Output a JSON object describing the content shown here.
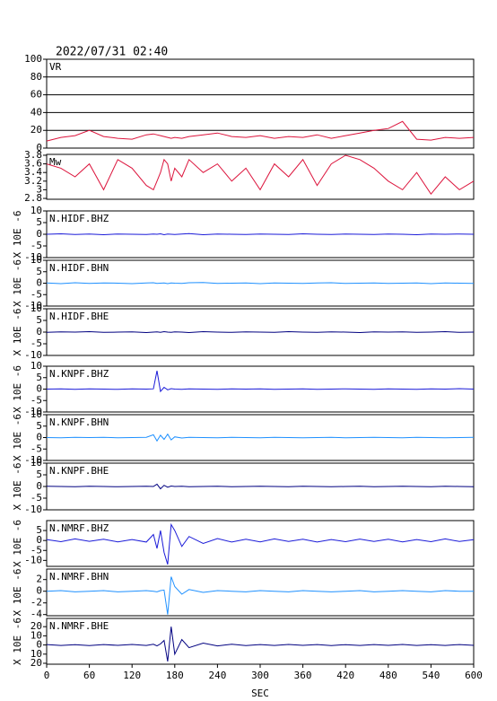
{
  "chart_data": [
    {
      "type": "line",
      "title": "2022/07/31 02:40",
      "label": "VR",
      "color": "#dc143c",
      "grid": true,
      "x": [
        0,
        20,
        40,
        60,
        80,
        100,
        120,
        140,
        150,
        155,
        160,
        165,
        170,
        175,
        180,
        190,
        200,
        220,
        240,
        260,
        280,
        300,
        320,
        340,
        360,
        380,
        400,
        420,
        440,
        460,
        480,
        500,
        520,
        540,
        560,
        580,
        600
      ],
      "values": [
        8,
        12,
        14,
        20,
        13,
        11,
        10,
        15,
        16,
        15,
        14,
        13,
        12,
        11,
        12,
        11,
        13,
        15,
        17,
        13,
        12,
        14,
        11,
        13,
        12,
        15,
        11,
        14,
        17,
        20,
        22,
        30,
        10,
        9,
        12,
        11,
        12
      ],
      "xlim": [
        0,
        600
      ],
      "ylim": [
        0,
        100
      ],
      "yticks": [
        0,
        20,
        40,
        60,
        80,
        100
      ]
    },
    {
      "type": "line",
      "label": "Mw",
      "color": "#dc143c",
      "grid": false,
      "x": [
        0,
        20,
        40,
        60,
        80,
        100,
        120,
        140,
        150,
        155,
        160,
        165,
        170,
        175,
        180,
        190,
        200,
        220,
        240,
        260,
        280,
        300,
        320,
        340,
        360,
        380,
        400,
        420,
        440,
        460,
        480,
        500,
        520,
        540,
        560,
        580,
        600
      ],
      "values": [
        3.6,
        3.5,
        3.3,
        3.6,
        3.0,
        3.7,
        3.5,
        3.1,
        3.0,
        3.2,
        3.4,
        3.7,
        3.6,
        3.2,
        3.5,
        3.3,
        3.7,
        3.4,
        3.6,
        3.2,
        3.5,
        3.0,
        3.6,
        3.3,
        3.7,
        3.1,
        3.6,
        3.8,
        3.7,
        3.5,
        3.2,
        3.0,
        3.4,
        2.9,
        3.3,
        3.0,
        3.2
      ],
      "xlim": [
        0,
        600
      ],
      "ylim": [
        2.78,
        3.82
      ],
      "yticks": [
        2.8,
        3.0,
        3.2,
        3.4,
        3.6,
        3.8
      ]
    },
    {
      "type": "line",
      "label": "N.HIDF.BHZ",
      "ylabel": "X 10E -6",
      "color": "#1a1ad8",
      "grid": false,
      "x": [
        0,
        20,
        40,
        60,
        80,
        100,
        120,
        140,
        150,
        155,
        160,
        165,
        170,
        175,
        180,
        190,
        200,
        220,
        240,
        260,
        280,
        300,
        320,
        340,
        360,
        380,
        400,
        420,
        440,
        460,
        480,
        500,
        520,
        540,
        560,
        580,
        600
      ],
      "values": [
        0,
        0.2,
        -0.1,
        0.1,
        -0.2,
        0.1,
        0,
        -0.1,
        0.1,
        0,
        0.2,
        -0.2,
        0.1,
        0,
        -0.1,
        0.1,
        0.3,
        -0.2,
        0.1,
        0,
        -0.1,
        0.1,
        0,
        -0.1,
        0.2,
        0,
        -0.1,
        0.1,
        0,
        -0.1,
        0.1,
        0,
        -0.2,
        0.1,
        0,
        0.1,
        0
      ],
      "xlim": [
        0,
        600
      ],
      "ylim": [
        -10,
        10
      ],
      "yticks": [
        -10,
        -5,
        0,
        5,
        10
      ]
    },
    {
      "type": "line",
      "label": "N.HIDF.BHN",
      "ylabel": "X 10E -6",
      "color": "#1e90ff",
      "grid": false,
      "x": [
        0,
        20,
        40,
        60,
        80,
        100,
        120,
        140,
        150,
        155,
        160,
        165,
        170,
        175,
        180,
        190,
        200,
        220,
        240,
        260,
        280,
        300,
        320,
        340,
        360,
        380,
        400,
        420,
        440,
        460,
        480,
        500,
        520,
        540,
        560,
        580,
        600
      ],
      "values": [
        0.1,
        -0.2,
        0.2,
        -0.1,
        0.1,
        0,
        -0.2,
        0.1,
        0.2,
        -0.1,
        0,
        0.1,
        -0.2,
        0.1,
        0,
        -0.1,
        0.2,
        0.3,
        -0.1,
        0,
        0.1,
        -0.2,
        0.1,
        0,
        -0.1,
        0.1,
        0.2,
        -0.1,
        0,
        0.1,
        -0.1,
        0,
        0.1,
        -0.2,
        0.1,
        0,
        -0.1
      ],
      "xlim": [
        0,
        600
      ],
      "ylim": [
        -10,
        10
      ],
      "yticks": [
        -10,
        -5,
        0,
        5,
        10
      ]
    },
    {
      "type": "line",
      "label": "N.HIDF.BHE",
      "ylabel": "X 10E -6",
      "color": "#000080",
      "grid": false,
      "x": [
        0,
        20,
        40,
        60,
        80,
        100,
        120,
        140,
        150,
        155,
        160,
        165,
        170,
        175,
        180,
        190,
        200,
        220,
        240,
        260,
        280,
        300,
        320,
        340,
        360,
        380,
        400,
        420,
        440,
        460,
        480,
        500,
        520,
        540,
        560,
        580,
        600
      ],
      "values": [
        -0.1,
        0.1,
        0,
        0.2,
        -0.1,
        0,
        0.1,
        -0.2,
        0,
        0.1,
        -0.1,
        0.2,
        0,
        -0.1,
        0.1,
        0,
        -0.2,
        0.2,
        0,
        -0.1,
        0.1,
        0,
        -0.1,
        0.2,
        0,
        -0.1,
        0.1,
        0,
        -0.2,
        0.1,
        0,
        0.1,
        -0.1,
        0,
        0.2,
        -0.1,
        0
      ],
      "xlim": [
        0,
        600
      ],
      "ylim": [
        -10,
        10
      ],
      "yticks": [
        -10,
        -5,
        0,
        5,
        10
      ]
    },
    {
      "type": "line",
      "label": "N.KNPF.BHZ",
      "ylabel": "X 10E -6",
      "color": "#1a1ad8",
      "grid": false,
      "x": [
        0,
        20,
        40,
        60,
        80,
        100,
        120,
        140,
        150,
        155,
        160,
        165,
        170,
        175,
        180,
        190,
        200,
        220,
        240,
        260,
        280,
        300,
        320,
        340,
        360,
        380,
        400,
        420,
        440,
        460,
        480,
        500,
        520,
        540,
        560,
        580,
        600
      ],
      "values": [
        0,
        0.1,
        -0.1,
        0.1,
        0,
        -0.1,
        0.1,
        0,
        0.1,
        8,
        -1,
        0.8,
        -0.3,
        0.2,
        0,
        -0.1,
        0.1,
        0,
        -0.1,
        0.1,
        0,
        0.1,
        -0.1,
        0,
        0.1,
        -0.1,
        0,
        0.1,
        0,
        -0.1,
        0.1,
        0,
        -0.1,
        0.1,
        0,
        0.2,
        0
      ],
      "xlim": [
        0,
        600
      ],
      "ylim": [
        -10,
        10
      ],
      "yticks": [
        -10,
        -5,
        0,
        5,
        10
      ]
    },
    {
      "type": "line",
      "label": "N.KNPF.BHN",
      "ylabel": "X 10E -6",
      "color": "#1e90ff",
      "grid": false,
      "x": [
        0,
        20,
        40,
        60,
        80,
        100,
        120,
        140,
        150,
        155,
        160,
        165,
        170,
        175,
        180,
        190,
        200,
        220,
        240,
        260,
        280,
        300,
        320,
        340,
        360,
        380,
        400,
        420,
        440,
        460,
        480,
        500,
        520,
        540,
        560,
        580,
        600
      ],
      "values": [
        0,
        -0.1,
        0.1,
        0,
        0.1,
        -0.1,
        0,
        0.1,
        1.2,
        -1.5,
        1,
        -0.8,
        1.5,
        -1,
        0.3,
        -0.2,
        0.1,
        0,
        -0.1,
        0.1,
        0,
        -0.1,
        0.1,
        0,
        -0.1,
        0,
        0.1,
        -0.1,
        0,
        0.1,
        0,
        -0.1,
        0.1,
        0,
        -0.1,
        0,
        0.1
      ],
      "xlim": [
        0,
        600
      ],
      "ylim": [
        -10,
        10
      ],
      "yticks": [
        -10,
        -5,
        0,
        5,
        10
      ]
    },
    {
      "type": "line",
      "label": "N.KNPF.BHE",
      "ylabel": "X 10E -6",
      "color": "#000080",
      "grid": false,
      "x": [
        0,
        20,
        40,
        60,
        80,
        100,
        120,
        140,
        150,
        155,
        160,
        165,
        170,
        175,
        180,
        190,
        200,
        220,
        240,
        260,
        280,
        300,
        320,
        340,
        360,
        380,
        400,
        420,
        440,
        460,
        480,
        500,
        520,
        540,
        560,
        580,
        600
      ],
      "values": [
        0.1,
        0,
        -0.1,
        0.1,
        0,
        -0.1,
        0,
        0.1,
        0,
        1,
        -1,
        0.5,
        -0.3,
        0.2,
        0,
        0.1,
        -0.1,
        0,
        0.1,
        -0.1,
        0,
        0.1,
        0,
        -0.1,
        0.1,
        0,
        -0.1,
        0,
        0.1,
        -0.1,
        0,
        0.1,
        0,
        -0.1,
        0.1,
        0,
        -0.1
      ],
      "xlim": [
        0,
        600
      ],
      "ylim": [
        -10,
        10
      ],
      "yticks": [
        -10,
        -5,
        0,
        5,
        10
      ]
    },
    {
      "type": "line",
      "label": "N.NMRF.BHZ",
      "ylabel": "X 10E -6",
      "color": "#1a1ad8",
      "grid": false,
      "x": [
        0,
        20,
        40,
        60,
        80,
        100,
        120,
        140,
        150,
        155,
        160,
        165,
        170,
        175,
        180,
        190,
        200,
        220,
        240,
        260,
        280,
        300,
        320,
        340,
        360,
        380,
        400,
        420,
        440,
        460,
        480,
        500,
        520,
        540,
        560,
        580,
        600
      ],
      "values": [
        0.5,
        -0.6,
        0.8,
        -0.4,
        0.6,
        -0.7,
        0.5,
        -0.8,
        3,
        -4,
        5,
        -6,
        -12,
        8,
        5,
        -3,
        2,
        -1.5,
        1,
        -0.8,
        0.6,
        -0.7,
        0.8,
        -0.5,
        0.6,
        -0.8,
        0.5,
        -0.6,
        0.7,
        -0.5,
        0.6,
        -0.7,
        0.5,
        -0.6,
        0.8,
        -0.5,
        0.4
      ],
      "xlim": [
        0,
        600
      ],
      "ylim": [
        -13,
        10
      ],
      "yticks": [
        -10,
        -5,
        0,
        5
      ]
    },
    {
      "type": "line",
      "label": "N.NMRF.BHN",
      "ylabel": "X 10E -6",
      "color": "#1e90ff",
      "grid": false,
      "x": [
        0,
        20,
        40,
        60,
        80,
        100,
        120,
        140,
        150,
        155,
        160,
        165,
        170,
        175,
        180,
        190,
        200,
        220,
        240,
        260,
        280,
        300,
        320,
        340,
        360,
        380,
        400,
        420,
        440,
        460,
        480,
        500,
        520,
        540,
        560,
        580,
        600
      ],
      "values": [
        0,
        0.1,
        -0.1,
        0,
        0.1,
        -0.1,
        0,
        0.1,
        0,
        -0.1,
        0.1,
        0.2,
        -4,
        2.5,
        0.8,
        -0.5,
        0.3,
        -0.2,
        0.1,
        0,
        -0.1,
        0.1,
        0,
        -0.1,
        0.1,
        0,
        -0.1,
        0,
        0.1,
        -0.1,
        0,
        0.1,
        0,
        -0.1,
        0.1,
        0,
        0
      ],
      "xlim": [
        0,
        600
      ],
      "ylim": [
        -4.2,
        3.8
      ],
      "yticks": [
        -4,
        -2,
        0,
        2
      ]
    },
    {
      "type": "line",
      "label": "N.NMRF.BHE",
      "ylabel": "X 10E -6",
      "color": "#000080",
      "grid": false,
      "x": [
        0,
        20,
        40,
        60,
        80,
        100,
        120,
        140,
        150,
        155,
        160,
        165,
        170,
        175,
        180,
        190,
        200,
        220,
        240,
        260,
        280,
        300,
        320,
        340,
        360,
        380,
        400,
        420,
        440,
        460,
        480,
        500,
        520,
        540,
        560,
        580,
        600
      ],
      "values": [
        0.5,
        -0.5,
        0.4,
        -0.6,
        0.5,
        -0.4,
        0.6,
        -0.5,
        0.8,
        -1,
        1.2,
        5,
        -18,
        20,
        -10,
        6,
        -3,
        2,
        -1,
        0.8,
        -0.6,
        0.5,
        -0.5,
        0.6,
        -0.4,
        0.5,
        -0.6,
        0.4,
        -0.5,
        0.5,
        -0.4,
        0.6,
        -0.5,
        0.4,
        -0.5,
        0.5,
        -0.4
      ],
      "xlim": [
        0,
        600
      ],
      "ylim": [
        -21,
        29
      ],
      "yticks": [
        {
          "value": -20,
          "label": "20"
        },
        {
          "value": -10,
          "label": "10"
        },
        0,
        10,
        20
      ],
      "xticks": [
        0,
        60,
        120,
        180,
        240,
        300,
        360,
        420,
        480,
        540,
        600
      ],
      "xlabel": "SEC"
    }
  ]
}
